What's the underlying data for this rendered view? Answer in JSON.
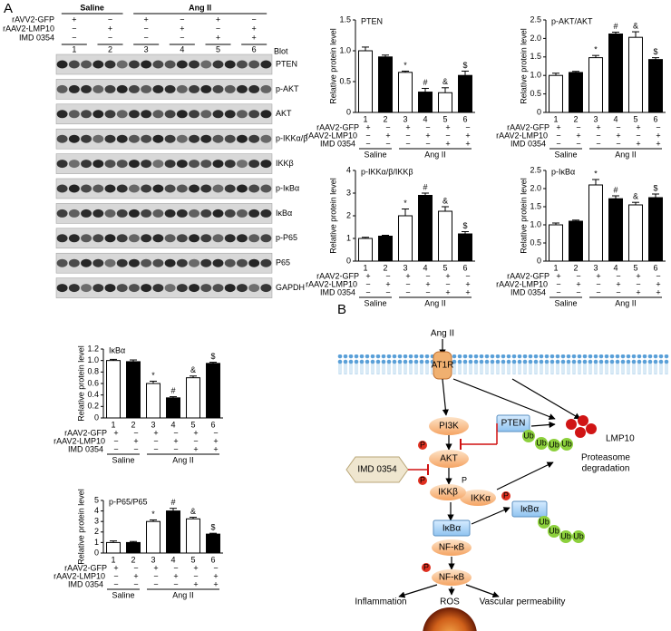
{
  "figure": {
    "panel_a": "A",
    "panel_b": "B"
  },
  "blot": {
    "header": "Blot",
    "groups": [
      "Saline",
      "Ang II"
    ],
    "conditions": [
      {
        "label": "rAVV2-GFP",
        "marks": [
          "+",
          "−",
          "+",
          "−",
          "+",
          "−"
        ]
      },
      {
        "label": "rAAV2-LMP10",
        "marks": [
          "−",
          "+",
          "−",
          "+",
          "−",
          "+"
        ]
      },
      {
        "label": "IMD 0354",
        "marks": [
          "−",
          "−",
          "−",
          "−",
          "+",
          "+"
        ]
      }
    ],
    "lanes": [
      "1",
      "2",
      "3",
      "4",
      "5",
      "6"
    ],
    "bands": [
      "PTEN",
      "p-AKT",
      "AKT",
      "p-IKKα/β",
      "IKKβ",
      "p-IκBα",
      "IκBα",
      "p-P65",
      "P65",
      "GAPDH"
    ]
  },
  "chart_data": [
    {
      "type": "bar",
      "title": "PTEN",
      "y_label": "Relative protein level",
      "categories": [
        "1",
        "2",
        "3",
        "4",
        "5",
        "6"
      ],
      "values": [
        1.0,
        0.9,
        0.65,
        0.33,
        0.32,
        0.6
      ],
      "errors": [
        0.06,
        0.03,
        0.02,
        0.06,
        0.08,
        0.07
      ],
      "colors": [
        "#ffffff",
        "#000000",
        "#ffffff",
        "#000000",
        "#ffffff",
        "#000000"
      ],
      "annotations": [
        null,
        null,
        "*",
        "#",
        "&",
        "$"
      ],
      "ylim": [
        0,
        1.5
      ],
      "yticks": [
        0,
        0.5,
        {
          "value": 1,
          "label": "1.0"
        },
        1.5
      ],
      "conditions": [
        {
          "label": "rAAV2-GFP",
          "marks": [
            "+",
            "−",
            "+",
            "−",
            "+",
            "−"
          ]
        },
        {
          "label": "rAAV2-LMP10",
          "marks": [
            "−",
            "+",
            "−",
            "+",
            "−",
            "+"
          ]
        },
        {
          "label": "IMD 0354",
          "marks": [
            "−",
            "−",
            "−",
            "−",
            "+",
            "+"
          ]
        }
      ],
      "groups": [
        "Saline",
        "Ang II"
      ]
    },
    {
      "type": "bar",
      "title": "p-AKT/AKT",
      "y_label": "Relative protein level",
      "categories": [
        "1",
        "2",
        "3",
        "4",
        "5",
        "6"
      ],
      "values": [
        1.0,
        1.08,
        1.48,
        2.12,
        2.03,
        1.43
      ],
      "errors": [
        0.06,
        0.03,
        0.06,
        0.05,
        0.15,
        0.05
      ],
      "colors": [
        "#ffffff",
        "#000000",
        "#ffffff",
        "#000000",
        "#ffffff",
        "#000000"
      ],
      "annotations": [
        null,
        null,
        "*",
        "#",
        "&",
        "$"
      ],
      "ylim": [
        0,
        2.5
      ],
      "yticks": [
        0,
        0.5,
        {
          "value": 1,
          "label": "1.0"
        },
        1.5,
        {
          "value": 2,
          "label": "2.0"
        },
        2.5
      ],
      "conditions": [
        {
          "label": "rAAV2-GFP",
          "marks": [
            "+",
            "−",
            "+",
            "−",
            "+",
            "−"
          ]
        },
        {
          "label": "rAAV2-LMP10",
          "marks": [
            "−",
            "+",
            "−",
            "+",
            "−",
            "+"
          ]
        },
        {
          "label": "IMD 0354",
          "marks": [
            "−",
            "−",
            "−",
            "−",
            "+",
            "+"
          ]
        }
      ],
      "groups": [
        "Saline",
        "Ang II"
      ]
    },
    {
      "type": "bar",
      "title": "p-IKKα/β/IKKβ",
      "y_label": "Relative protein level",
      "categories": [
        "1",
        "2",
        "3",
        "4",
        "5",
        "6"
      ],
      "values": [
        1.0,
        1.1,
        2.0,
        2.9,
        2.2,
        1.2
      ],
      "errors": [
        0.05,
        0.04,
        0.3,
        0.1,
        0.2,
        0.1
      ],
      "colors": [
        "#ffffff",
        "#000000",
        "#ffffff",
        "#000000",
        "#ffffff",
        "#000000"
      ],
      "annotations": [
        null,
        null,
        "*",
        "#",
        "&",
        "$"
      ],
      "ylim": [
        0,
        4
      ],
      "yticks": [
        0,
        1,
        2,
        3,
        4
      ],
      "conditions": [
        {
          "label": "rAAV2-GFP",
          "marks": [
            "+",
            "−",
            "+",
            "−",
            "+",
            "−"
          ]
        },
        {
          "label": "rAAV2-LMP10",
          "marks": [
            "−",
            "+",
            "−",
            "+",
            "−",
            "+"
          ]
        },
        {
          "label": "IMD 0354",
          "marks": [
            "−",
            "−",
            "−",
            "−",
            "+",
            "+"
          ]
        }
      ],
      "groups": [
        "Saline",
        "Ang II"
      ]
    },
    {
      "type": "bar",
      "title": "p-IκBα",
      "y_label": "Relative protein level",
      "categories": [
        "1",
        "2",
        "3",
        "4",
        "5",
        "6"
      ],
      "values": [
        1.0,
        1.1,
        2.1,
        1.72,
        1.55,
        1.75
      ],
      "errors": [
        0.05,
        0.03,
        0.15,
        0.08,
        0.07,
        0.1
      ],
      "colors": [
        "#ffffff",
        "#000000",
        "#ffffff",
        "#000000",
        "#ffffff",
        "#000000"
      ],
      "annotations": [
        null,
        null,
        "*",
        "#",
        "&",
        "$"
      ],
      "ylim": [
        0,
        2.5
      ],
      "yticks": [
        0,
        0.5,
        {
          "value": 1,
          "label": "1.0"
        },
        1.5,
        {
          "value": 2,
          "label": "2.0"
        },
        2.5
      ],
      "conditions": [
        {
          "label": "rAAV2-GFP",
          "marks": [
            "+",
            "−",
            "+",
            "−",
            "+",
            "−"
          ]
        },
        {
          "label": "rAAV2-LMP10",
          "marks": [
            "−",
            "+",
            "−",
            "+",
            "−",
            "+"
          ]
        },
        {
          "label": "IMD 0354",
          "marks": [
            "−",
            "−",
            "−",
            "−",
            "+",
            "+"
          ]
        }
      ],
      "groups": [
        "Saline",
        "Ang II"
      ]
    },
    {
      "type": "bar",
      "title": "IκBα",
      "y_label": "Relative protein level",
      "categories": [
        "1",
        "2",
        "3",
        "4",
        "5",
        "6"
      ],
      "values": [
        1.0,
        0.98,
        0.6,
        0.35,
        0.7,
        0.95
      ],
      "errors": [
        0.02,
        0.03,
        0.04,
        0.02,
        0.03,
        0.02
      ],
      "colors": [
        "#ffffff",
        "#000000",
        "#ffffff",
        "#000000",
        "#ffffff",
        "#000000"
      ],
      "annotations": [
        null,
        null,
        "*",
        "#",
        "&",
        "$"
      ],
      "ylim": [
        0,
        1.2
      ],
      "yticks": [
        0,
        0.2,
        0.4,
        0.6,
        0.8,
        {
          "value": 1,
          "label": "1.0"
        },
        1.2
      ],
      "conditions": [
        {
          "label": "rAAV2-GFP",
          "marks": [
            "+",
            "−",
            "+",
            "−",
            "+",
            "−"
          ]
        },
        {
          "label": "rAAV2-LMP10",
          "marks": [
            "−",
            "+",
            "−",
            "+",
            "−",
            "+"
          ]
        },
        {
          "label": "IMD 0354",
          "marks": [
            "−",
            "−",
            "−",
            "−",
            "+",
            "+"
          ]
        }
      ],
      "groups": [
        "Saline",
        "Ang II"
      ]
    },
    {
      "type": "bar",
      "title": "p-P65/P65",
      "y_label": "Relative protein level",
      "categories": [
        "1",
        "2",
        "3",
        "4",
        "5",
        "6"
      ],
      "values": [
        1.0,
        1.0,
        3.0,
        4.0,
        3.25,
        1.8
      ],
      "errors": [
        0.15,
        0.1,
        0.15,
        0.25,
        0.15,
        0.08
      ],
      "colors": [
        "#ffffff",
        "#000000",
        "#ffffff",
        "#000000",
        "#ffffff",
        "#000000"
      ],
      "annotations": [
        null,
        null,
        "*",
        "#",
        "&",
        "$"
      ],
      "ylim": [
        0,
        5
      ],
      "yticks": [
        0,
        1,
        2,
        3,
        4,
        5
      ],
      "conditions": [
        {
          "label": "rAAV2-GFP",
          "marks": [
            "+",
            "−",
            "+",
            "−",
            "+",
            "−"
          ]
        },
        {
          "label": "rAAV2-LMP10",
          "marks": [
            "−",
            "+",
            "−",
            "+",
            "−",
            "+"
          ]
        },
        {
          "label": "IMD 0354",
          "marks": [
            "−",
            "−",
            "−",
            "−",
            "+",
            "+"
          ]
        }
      ],
      "groups": [
        "Saline",
        "Ang II"
      ]
    }
  ],
  "diagram": {
    "ang_ii": "Ang II",
    "at1r": "AT1R",
    "pi3k": "PI3K",
    "pten": "PTEN",
    "akt": "AKT",
    "ub": [
      "Ub",
      "Ub",
      "Ub",
      "Ub"
    ],
    "lmp10": "LMP10",
    "proteasome": [
      "Proteasome",
      "degradation"
    ],
    "imd": "IMD 0354",
    "ikkb": "IKKβ",
    "ikka": "IKKα",
    "ikba": "IκBα",
    "nfkb": "NF-κB",
    "ikba_2": "IκBα",
    "ub_2": [
      "Ub",
      "Ub",
      "Ub",
      "Ub"
    ],
    "nfkb_2": "NF-κB",
    "p": [
      "P",
      "P",
      "P",
      "P",
      "P"
    ],
    "outcomes": [
      "Inflammation",
      "ROS",
      "Vascular permeability"
    ]
  }
}
